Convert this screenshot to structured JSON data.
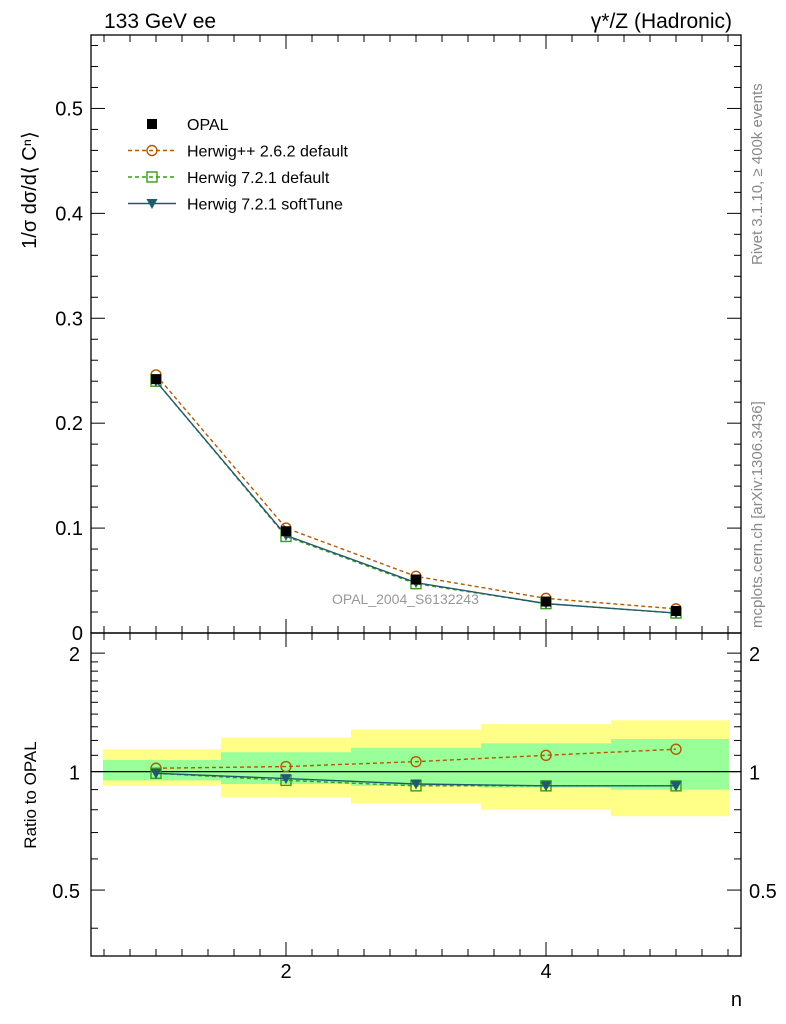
{
  "header": {
    "left": "133 GeV ee",
    "right": "γ*/Z (Hadronic)"
  },
  "side_labels": {
    "rivet": "Rivet 3.1.10, ≥ 400k events",
    "mcplots": "mcplots.cern.ch [arXiv:1306.3436]"
  },
  "colors": {
    "opal": "#000000",
    "herwigpp": "#b35900",
    "herwig_default": "#3a9a1a",
    "herwig_soft": "#1f5a6e",
    "band_inner": "#99ff99",
    "band_outer": "#ffff88"
  },
  "chart_data": [
    {
      "type": "line",
      "panel": "main",
      "ylabel": "1/σ dσ/d⟨ Cⁿ⟩",
      "xlim": [
        0.5,
        5.5
      ],
      "ylim": [
        0,
        0.57
      ],
      "yticks": [
        0,
        0.1,
        0.2,
        0.3,
        0.4,
        0.5
      ],
      "ytick_labels": [
        "0",
        "0.1",
        "0.2",
        "0.3",
        "0.4",
        "0.5"
      ],
      "watermark": "OPAL_2004_S6132243",
      "legend_position": "top-left",
      "x": [
        1,
        2,
        3,
        4,
        5
      ],
      "series": [
        {
          "name": "OPAL",
          "style": "square-filled",
          "values": [
            0.242,
            0.097,
            0.051,
            0.03,
            0.021
          ]
        },
        {
          "name": "Herwig++ 2.6.2 default",
          "style": "circle-open-dashed",
          "values": [
            0.246,
            0.1,
            0.054,
            0.033,
            0.023
          ]
        },
        {
          "name": "Herwig 7.2.1 default",
          "style": "square-open-dashed",
          "values": [
            0.24,
            0.092,
            0.047,
            0.028,
            0.019
          ]
        },
        {
          "name": "Herwig 7.2.1 softTune",
          "style": "triangle-down-solid",
          "values": [
            0.24,
            0.093,
            0.048,
            0.028,
            0.019
          ]
        }
      ]
    },
    {
      "type": "line",
      "panel": "ratio",
      "ylabel": "Ratio to OPAL",
      "xlabel": "n",
      "xlim": [
        0.5,
        5.5
      ],
      "ylim": [
        0.34,
        2.25
      ],
      "yticks": [
        0.5,
        1,
        2
      ],
      "ytick_labels": [
        "0.5",
        "1",
        "2"
      ],
      "xticks": [
        2,
        4
      ],
      "xtick_labels": [
        "2",
        "4"
      ],
      "bands": [
        {
          "bin": [
            0.5,
            1.5
          ],
          "inner": [
            0.95,
            1.07
          ],
          "outer": [
            0.92,
            1.14
          ]
        },
        {
          "bin": [
            1.5,
            2.5
          ],
          "inner": [
            0.93,
            1.12
          ],
          "outer": [
            0.86,
            1.22
          ]
        },
        {
          "bin": [
            2.5,
            3.5
          ],
          "inner": [
            0.92,
            1.15
          ],
          "outer": [
            0.83,
            1.28
          ]
        },
        {
          "bin": [
            3.5,
            4.5
          ],
          "inner": [
            0.91,
            1.18
          ],
          "outer": [
            0.8,
            1.32
          ]
        },
        {
          "bin": [
            4.5,
            5.5
          ],
          "inner": [
            0.9,
            1.21
          ],
          "outer": [
            0.77,
            1.35
          ]
        }
      ],
      "x": [
        1,
        2,
        3,
        4,
        5
      ],
      "series": [
        {
          "name": "Herwig++ 2.6.2 default",
          "style": "circle-open-dashed",
          "values": [
            1.02,
            1.03,
            1.06,
            1.1,
            1.14
          ]
        },
        {
          "name": "Herwig 7.2.1 default",
          "style": "square-open-dashed",
          "values": [
            0.99,
            0.95,
            0.92,
            0.92,
            0.92
          ]
        },
        {
          "name": "Herwig 7.2.1 softTune",
          "style": "triangle-down-solid",
          "values": [
            0.99,
            0.96,
            0.93,
            0.92,
            0.92
          ]
        }
      ]
    }
  ]
}
